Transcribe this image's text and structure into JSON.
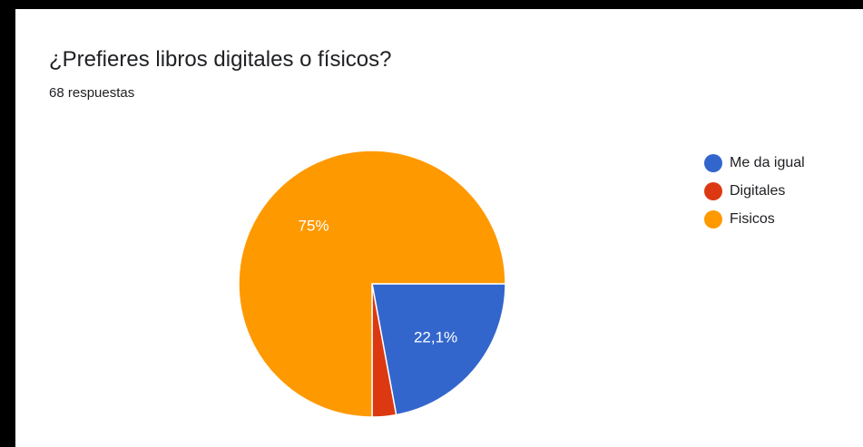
{
  "chart_data": {
    "type": "pie",
    "title": "¿Prefieres libros digitales o físicos?",
    "subtitle": "68 respuestas",
    "slices": [
      {
        "label": "Me da igual",
        "value": 22.1,
        "display": "22,1%",
        "color": "#3366cc"
      },
      {
        "label": "Digitales",
        "value": 2.9,
        "display": "",
        "color": "#dc3912"
      },
      {
        "label": "Fisicos",
        "value": 75,
        "display": "75%",
        "color": "#ff9900"
      }
    ],
    "legend_position": "right"
  }
}
